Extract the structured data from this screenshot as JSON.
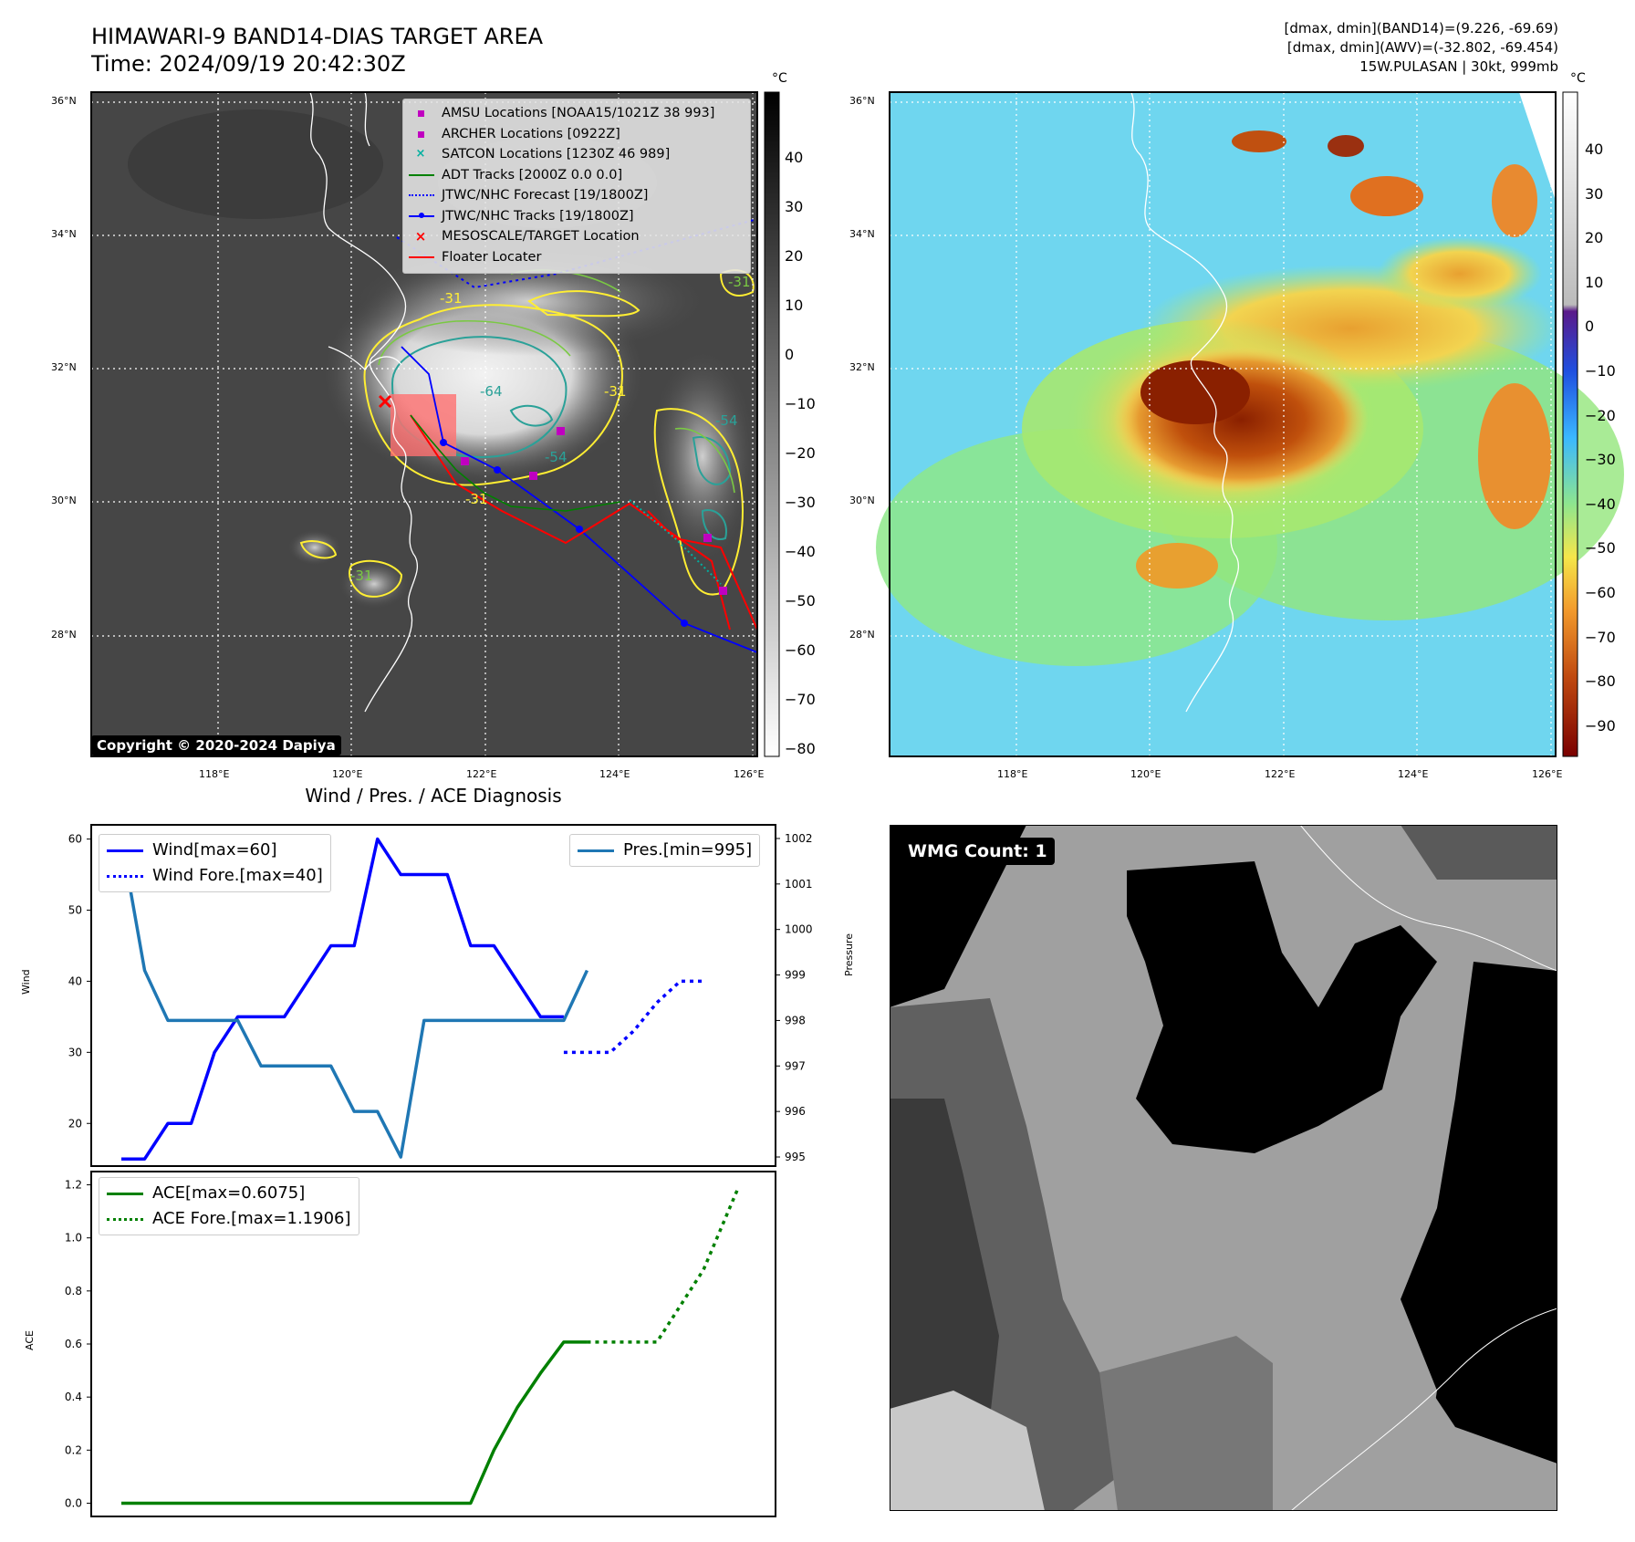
{
  "header": {
    "title": "HIMAWARI-9 BAND14-DIAS TARGET AREA",
    "time": "Time: 2024/09/19 20:42:30Z",
    "dmax_band14": "[dmax, dmin](BAND14)=(9.226, -69.69)",
    "dmax_awv": "[dmax, dmin](AWV)=(-32.802, -69.454)",
    "storm_info": "15W.PULASAN | 30kt, 999mb"
  },
  "map_axes": {
    "lat_ticks": [
      "36°N",
      "34°N",
      "32°N",
      "30°N",
      "28°N"
    ],
    "lon_ticks": [
      "118°E",
      "120°E",
      "122°E",
      "124°E",
      "126°E"
    ]
  },
  "colorbar_ir": {
    "unit": "°C",
    "ticks": [
      "40",
      "30",
      "20",
      "10",
      "0",
      "−10",
      "−20",
      "−30",
      "−40",
      "−50",
      "−60",
      "−70",
      "−80"
    ]
  },
  "colorbar_awv": {
    "unit": "°C",
    "ticks": [
      "40",
      "30",
      "20",
      "10",
      "0",
      "−10",
      "−20",
      "−30",
      "−40",
      "−50",
      "−60",
      "−70",
      "−80",
      "−90"
    ]
  },
  "legend_map": {
    "items": [
      {
        "label": "AMSU Locations [NOAA15/1021Z 38 993]",
        "color": "#c000c0"
      },
      {
        "label": "ARCHER Locations [0922Z]",
        "color": "#c000c0"
      },
      {
        "label": "SATCON Locations [1230Z 46 989]",
        "color": "#00b0a0"
      },
      {
        "label": "ADT Tracks [2000Z 0.0 0.0]",
        "color": "#008000"
      },
      {
        "label": "JTWC/NHC Forecast [19/1800Z]",
        "color": "#0000ff"
      },
      {
        "label": "JTWC/NHC Tracks [19/1800Z]",
        "color": "#0000ff"
      },
      {
        "label": "MESOSCALE/TARGET Location",
        "color": "#ff0000"
      },
      {
        "label": "Floater Locater",
        "color": "#ff0000"
      }
    ]
  },
  "contour_labels": [
    "-31",
    "-64",
    "-54",
    "-31",
    "-31",
    "-31",
    "-54",
    "-31"
  ],
  "copyright": "Copyright © 2020-2024 Dapiya",
  "wmg": {
    "label": "WMG Count: 1"
  },
  "chart_data": [
    {
      "type": "line",
      "title": "Wind / Pres. / ACE Diagnosis",
      "ylabel": "Wind",
      "y2label": "Pressure",
      "ylim": [
        14,
        62
      ],
      "y2lim": [
        994.8,
        1002.3
      ],
      "yticks": [
        "60",
        "50",
        "40",
        "30",
        "20"
      ],
      "y2ticks": [
        "1002",
        "1001",
        "1000",
        "999",
        "998",
        "997",
        "996",
        "995"
      ],
      "x": [
        0,
        1,
        2,
        3,
        4,
        5,
        6,
        7,
        8,
        9,
        10,
        11,
        12,
        13,
        14,
        15,
        16,
        17,
        18,
        19
      ],
      "series": [
        {
          "name": "Wind[max=60]",
          "values": [
            15,
            15,
            20,
            20,
            30,
            35,
            35,
            35,
            40,
            45,
            45,
            60,
            55,
            55,
            55,
            45,
            45,
            40,
            35,
            35
          ],
          "color": "#0000ff",
          "style": "solid"
        },
        {
          "name": "Wind Fore.[max=40]",
          "x": [
            19,
            20,
            21,
            22,
            23,
            24,
            25
          ],
          "values": [
            30,
            30,
            30,
            33,
            37,
            40,
            40
          ],
          "color": "#0000ff",
          "style": "dotted"
        },
        {
          "name": "Pres.[min=995]",
          "axis": "right",
          "x": [
            0,
            1,
            2,
            3,
            4,
            5,
            6,
            7,
            8,
            9,
            10,
            11,
            12,
            13,
            14,
            15,
            16,
            17,
            18,
            19,
            20
          ],
          "values": [
            1002,
            999.1,
            998,
            998,
            998,
            998,
            997,
            997,
            997,
            997,
            996,
            996,
            995,
            998,
            998,
            998,
            998,
            998,
            998,
            998,
            999.1
          ],
          "color": "#1f77b4",
          "style": "solid"
        }
      ],
      "legend_left": [
        "Wind[max=60]",
        "Wind Fore.[max=40]"
      ],
      "legend_right": [
        "Pres.[min=995]"
      ]
    },
    {
      "type": "line",
      "ylabel": "ACE",
      "ylim": [
        -0.05,
        1.25
      ],
      "yticks": [
        "1.2",
        "1.0",
        "0.8",
        "0.6",
        "0.4",
        "0.2",
        "0.0"
      ],
      "series": [
        {
          "name": "ACE[max=0.6075]",
          "x": [
            0,
            15,
            16,
            17,
            18,
            19,
            20
          ],
          "values": [
            0,
            0,
            0.2,
            0.36,
            0.49,
            0.6075,
            0.6075
          ],
          "color": "#008000",
          "style": "solid"
        },
        {
          "name": "ACE Fore.[max=1.1906]",
          "x": [
            20,
            23,
            25,
            26.5
          ],
          "values": [
            0.6075,
            0.6075,
            0.88,
            1.1906
          ],
          "color": "#008000",
          "style": "dotted"
        }
      ],
      "legend": [
        "ACE[max=0.6075]",
        "ACE Fore.[max=1.1906]"
      ]
    }
  ]
}
